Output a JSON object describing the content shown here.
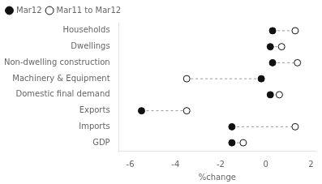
{
  "chart_data": {
    "type": "dumbbell",
    "orientation": "horizontal",
    "categories": [
      "Households",
      "Dwellings",
      "Non-dwelling construction",
      "Machinery & Equipment",
      "Domestic final demand",
      "Exports",
      "Imports",
      "GDP"
    ],
    "series": [
      {
        "name": "Mar12",
        "color": "#111111",
        "marker": "circle",
        "values": [
          0.3,
          0.2,
          0.3,
          -0.2,
          0.2,
          -5.5,
          -1.5,
          -1.5
        ]
      },
      {
        "name": "Mar11 to Mar12",
        "color": "#111111",
        "marker": "open_circle",
        "values": [
          1.3,
          0.7,
          1.4,
          -3.5,
          0.6,
          -3.5,
          1.3,
          -1.0
        ]
      }
    ],
    "color": "#999999",
    "line_style": "dashed",
    "x_label": "%change",
    "xlim": [
      -6.5,
      2.2
    ],
    "xticks": [
      -6,
      -4,
      -2,
      0,
      2
    ],
    "grid": false,
    "legend": "upper left"
  }
}
